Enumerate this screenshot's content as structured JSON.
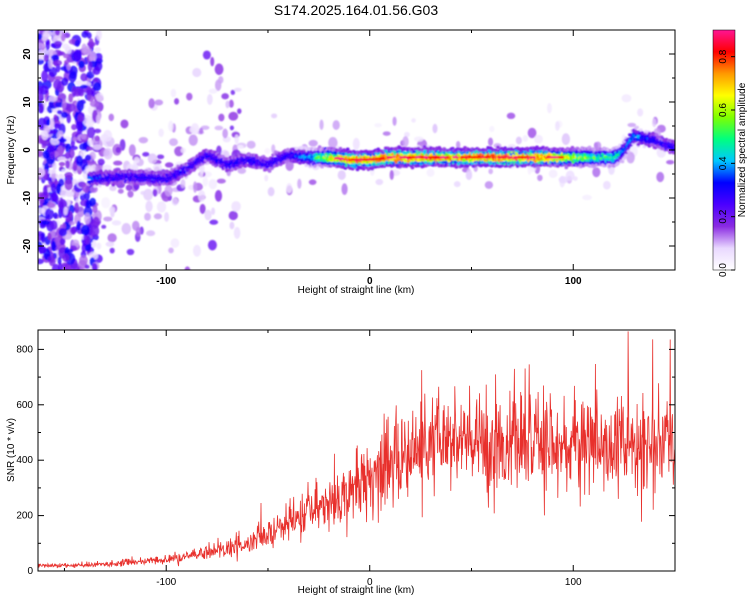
{
  "title": "S174.2025.164.01.56.G03",
  "colors": {
    "snr_line": "#e8302c",
    "background": "#ffffff"
  },
  "colorbar": {
    "label": "Normalized spectral amplitude",
    "range": [
      0.0,
      0.9
    ],
    "ticks": [
      "0.0",
      "0.2",
      "0.4",
      "0.6",
      "0.8"
    ],
    "colormap": [
      "#ffffff",
      "#e9d8ff",
      "#8a2be2",
      "#4b00ff",
      "#0000ff",
      "#00c8ff",
      "#00ff7f",
      "#7fff00",
      "#ffff00",
      "#ff9900",
      "#ff0000",
      "#ff1493"
    ]
  },
  "chart_data": [
    {
      "type": "heatmap",
      "name": "spectrogram",
      "xlabel": "Height of straight line (km)",
      "ylabel": "Frequency (Hz)",
      "xlim": [
        -163,
        150
      ],
      "ylim": [
        -25,
        25
      ],
      "xticks": [
        "-100",
        "0",
        "100"
      ],
      "yticks": [
        "-20",
        "-10",
        "0",
        "10",
        "20"
      ],
      "ridge": {
        "x": [
          -138,
          -120,
          -100,
          -90,
          -80,
          -70,
          -60,
          -50,
          -40,
          -30,
          -20,
          -10,
          0,
          10,
          20,
          40,
          60,
          80,
          100,
          110,
          120,
          125,
          130,
          140,
          150
        ],
        "frequency": [
          -6,
          -5.5,
          -6,
          -4,
          -1,
          -3,
          -2,
          -3,
          -1,
          -1.5,
          -1.5,
          -2,
          -2,
          -1.5,
          -1.5,
          -1.5,
          -1.5,
          -1.5,
          -1.5,
          -1.5,
          -1.5,
          0,
          3,
          2,
          0.5
        ],
        "amplitude": [
          0.35,
          0.3,
          0.3,
          0.3,
          0.3,
          0.3,
          0.3,
          0.3,
          0.3,
          0.4,
          0.65,
          0.85,
          0.8,
          0.85,
          0.8,
          0.8,
          0.85,
          0.85,
          0.65,
          0.55,
          0.5,
          0.4,
          0.4,
          0.3,
          0.3
        ]
      }
    },
    {
      "type": "line",
      "name": "snr",
      "xlabel": "Height of straight line (km)",
      "ylabel": "SNR (10 * v/v)",
      "xlim": [
        -163,
        150
      ],
      "ylim": [
        0,
        870
      ],
      "xticks": [
        "-100",
        "0",
        "100"
      ],
      "yticks": [
        "0",
        "200",
        "400",
        "600",
        "800"
      ],
      "trend": {
        "x": [
          -163,
          -140,
          -120,
          -100,
          -90,
          -80,
          -70,
          -60,
          -50,
          -40,
          -30,
          -20,
          -10,
          0,
          10,
          20,
          30,
          40,
          60,
          80,
          100,
          120,
          140,
          150
        ],
        "y": [
          20,
          20,
          30,
          40,
          50,
          70,
          80,
          95,
          130,
          170,
          210,
          250,
          290,
          340,
          380,
          420,
          450,
          460,
          460,
          455,
          455,
          450,
          450,
          450
        ]
      },
      "peak": {
        "x": 127,
        "y": 865
      }
    }
  ]
}
